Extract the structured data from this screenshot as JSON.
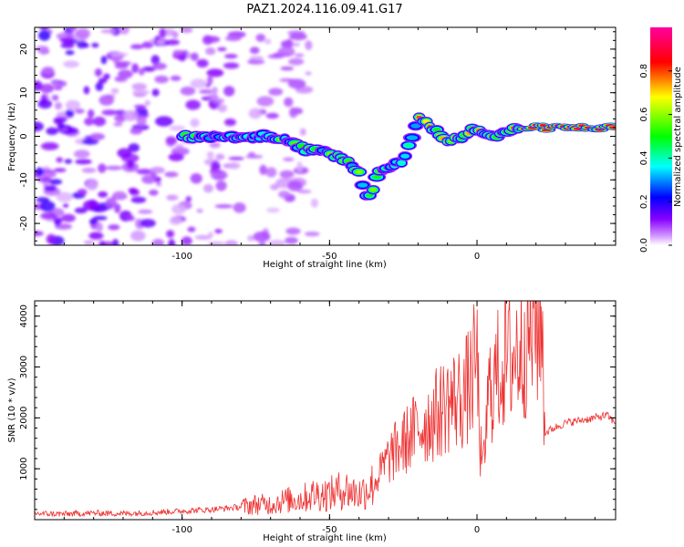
{
  "title": "PAZ1.2024.116.09.41.G17",
  "chart_data": [
    {
      "type": "heatmap",
      "xlabel": "Height of straight line (km)",
      "ylabel": "Frequency (Hz)",
      "xlim": [
        -150,
        47
      ],
      "ylim": [
        -25,
        25
      ],
      "x_ticks": [
        -100,
        -50,
        0
      ],
      "y_ticks": [
        20,
        10,
        0,
        -10,
        -20
      ],
      "colorbar": {
        "label": "Normalized spectral amplitude",
        "range": [
          0,
          1
        ],
        "ticks": [
          0.0,
          0.2,
          0.4,
          0.6,
          0.8
        ],
        "colormap": [
          "#ffffff",
          "#8800ff",
          "#0000ff",
          "#00ffff",
          "#00ff00",
          "#ffff00",
          "#ff0000",
          "#ff00a0"
        ]
      },
      "ridge": [
        {
          "x": -100,
          "y": 0
        },
        {
          "x": -90,
          "y": 0
        },
        {
          "x": -80,
          "y": 0
        },
        {
          "x": -72,
          "y": 0
        },
        {
          "x": -65,
          "y": -1
        },
        {
          "x": -58,
          "y": -3
        },
        {
          "x": -50,
          "y": -4
        },
        {
          "x": -45,
          "y": -5
        },
        {
          "x": -40,
          "y": -8
        },
        {
          "x": -37,
          "y": -15
        },
        {
          "x": -33,
          "y": -8
        },
        {
          "x": -25,
          "y": -6
        },
        {
          "x": -20,
          "y": 4
        },
        {
          "x": -15,
          "y": 2
        },
        {
          "x": -10,
          "y": -1
        },
        {
          "x": -5,
          "y": 0
        },
        {
          "x": 0,
          "y": 2
        },
        {
          "x": 5,
          "y": 0
        },
        {
          "x": 10,
          "y": 1
        },
        {
          "x": 15,
          "y": 2
        },
        {
          "x": 30,
          "y": 2
        },
        {
          "x": 47,
          "y": 2
        }
      ],
      "grid": false
    },
    {
      "type": "line",
      "xlabel": "Height of straight line (km)",
      "ylabel": "SNR (10 * v/v)",
      "xlim": [
        -150,
        47
      ],
      "ylim": [
        0,
        4300
      ],
      "x_ticks": [
        -100,
        -50,
        0
      ],
      "y_ticks": [
        1000,
        2000,
        3000,
        4000
      ],
      "color": "#ee3333",
      "series": [
        {
          "values": [
            {
              "x": -150,
              "y": 120
            },
            {
              "x": -140,
              "y": 110
            },
            {
              "x": -130,
              "y": 130
            },
            {
              "x": -120,
              "y": 120
            },
            {
              "x": -110,
              "y": 140
            },
            {
              "x": -100,
              "y": 170
            },
            {
              "x": -90,
              "y": 200
            },
            {
              "x": -80,
              "y": 250
            },
            {
              "x": -75,
              "y": 300
            },
            {
              "x": -70,
              "y": 300
            },
            {
              "x": -65,
              "y": 380
            },
            {
              "x": -60,
              "y": 400
            },
            {
              "x": -55,
              "y": 500
            },
            {
              "x": -50,
              "y": 500
            },
            {
              "x": -45,
              "y": 600
            },
            {
              "x": -40,
              "y": 500
            },
            {
              "x": -35,
              "y": 700
            },
            {
              "x": -30,
              "y": 1200
            },
            {
              "x": -25,
              "y": 1500
            },
            {
              "x": -20,
              "y": 1800
            },
            {
              "x": -15,
              "y": 2000
            },
            {
              "x": -10,
              "y": 2300
            },
            {
              "x": -5,
              "y": 2400
            },
            {
              "x": -2,
              "y": 2700
            },
            {
              "x": 0,
              "y": 3200
            },
            {
              "x": 1,
              "y": 1500
            },
            {
              "x": 2,
              "y": 900
            },
            {
              "x": 4,
              "y": 2500
            },
            {
              "x": 8,
              "y": 3000
            },
            {
              "x": 12,
              "y": 3200
            },
            {
              "x": 16,
              "y": 3500
            },
            {
              "x": 20,
              "y": 3800
            },
            {
              "x": 22,
              "y": 3900
            },
            {
              "x": 23,
              "y": 1700
            },
            {
              "x": 26,
              "y": 1800
            },
            {
              "x": 30,
              "y": 1900
            },
            {
              "x": 35,
              "y": 1950
            },
            {
              "x": 40,
              "y": 2000
            },
            {
              "x": 44,
              "y": 2050
            },
            {
              "x": 47,
              "y": 1900
            }
          ]
        }
      ],
      "grid": false
    }
  ]
}
